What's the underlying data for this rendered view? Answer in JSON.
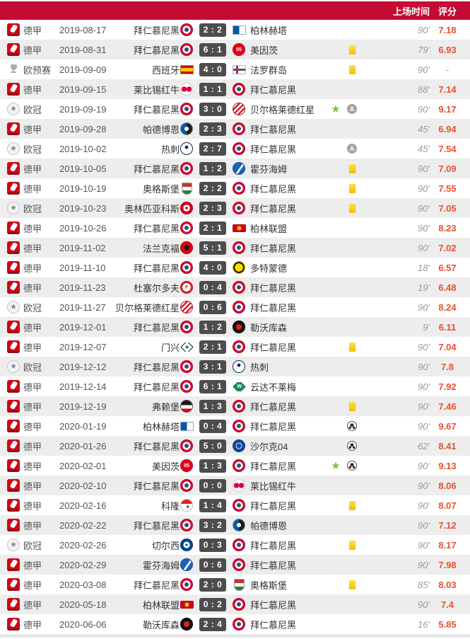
{
  "header": {
    "time_label": "上场时间",
    "rating_label": "评分",
    "bg": "#c40b33",
    "text_color": "#ffffff"
  },
  "colors": {
    "row_bg": "#ffffff",
    "row_alt_bg": "#ededed",
    "rating": "#e9502e",
    "rating_na": "#999999",
    "time": "#9b9b9b",
    "name": "#333333",
    "meta": "#555555",
    "score_bg": "#4d4d4f",
    "star": "#7ac143",
    "assist_badge_bg": "#a3a3a3",
    "footer_strip": "#e9e9e9",
    "bundesliga_red": "#d20515",
    "header_red": "#c40b33",
    "yellow_card": "#f3c000"
  },
  "glyphs": {
    "star": "★",
    "ucl_starball": "★",
    "assist_letter": "A"
  },
  "leagues": {
    "bundesliga": {
      "label": "德甲"
    },
    "ucl": {
      "label": "欧冠"
    },
    "euro_qualifier": {
      "label": "欧预赛"
    }
  },
  "team_logos": {
    "拜仁慕尼黑": {
      "shape": "circle",
      "bg": "radial-gradient(circle, #29508c 0 26%, #ffffff 26% 50%, #d50c2e 50% 100%)",
      "border": "#b00a26"
    },
    "柏林赫塔": {
      "shape": "flag",
      "bg": "linear-gradient(90deg, #0b57a4 0 50%, #ffffff 50% 100%)",
      "border": "#8aa5c2"
    },
    "美因茨": {
      "shape": "circle",
      "bg": "#e2001a",
      "border": "#c00016",
      "label": "05",
      "label_color": "#ffffff"
    },
    "西班牙": {
      "shape": "flag",
      "bg": "linear-gradient(180deg, #c60b1e 0 27%, #ffc400 27% 73%, #c60b1e 73% 100%)",
      "border": "#b39200"
    },
    "法罗群岛": {
      "shape": "flag",
      "bg": "linear-gradient(90deg, transparent 0 27%, #d8232a 27% 38%, transparent 38%), linear-gradient(180deg, transparent 0 41%, #d8232a 41% 59%, transparent 59%), linear-gradient(90deg, transparent 0 23%, #0065bd 23% 42%, transparent 42%), linear-gradient(180deg, transparent 0 35%, #0065bd 35% 65%, transparent 65%), #ffffff",
      "border": "#a9b8cf"
    },
    "莱比锡红牛": {
      "shape": "circle",
      "bg": "radial-gradient(circle at 28% 50%, #dd013f 0 26%, transparent 27%), radial-gradient(circle at 72% 50%, #dd013f 0 26%, transparent 27%), #ffffff",
      "border": "#cccccc"
    },
    "贝尔格莱德红星": {
      "shape": "circle",
      "bg": "repeating-linear-gradient(135deg, #d31f2b 0 2.5px, #ffffff 2.5px 5px)",
      "border": "#b31c26"
    },
    "帕德博恩": {
      "shape": "circle",
      "bg": "radial-gradient(circle, #ffffff 0 26%, transparent 27%), linear-gradient(90deg, #045ba5 0 50%, #1c1c1c 50%)",
      "border": "#888888"
    },
    "热刺": {
      "shape": "circle",
      "bg": "radial-gradient(circle at 50% 38%, #132257 0 18%, transparent 19%), #ffffff",
      "border": "#132257"
    },
    "霍芬海姆": {
      "shape": "circle",
      "bg": "linear-gradient(125deg, #1c63b7 0 52%, #ffffff 52% 64%, #1c63b7 64% 100%)",
      "border": "#114a8c"
    },
    "奥格斯堡": {
      "shape": "shield",
      "bg": "linear-gradient(180deg, #c3362b 0 34%, #ffffff 34% 66%, #2f7a3d 66% 100%)",
      "border": "#999999"
    },
    "奥林匹亚科斯": {
      "shape": "circle",
      "bg": "radial-gradient(circle, #d6001c 0 16%, #ffffff 16% 42%, #d6001c 42% 100%)",
      "border": "#a80016"
    },
    "柏林联盟": {
      "shape": "wide",
      "bg": "radial-gradient(circle, #f3c10f 0 30%, transparent 31%), #d4011d",
      "border": "#a80117"
    },
    "法兰克福": {
      "shape": "circle",
      "bg": "radial-gradient(circle, #1a1a1a 0 34%, #e1000f 34% 100%)",
      "border": "#b00000"
    },
    "多特蒙德": {
      "shape": "circle",
      "bg": "radial-gradient(circle, #ffd900 0 52%, #191919 52% 70%, #ffd900 70% 100%)",
      "border": "#d4b500"
    },
    "杜塞尔多夫": {
      "shape": "circle",
      "bg": "radial-gradient(circle, #ffffff 0 52%, #da251d 52% 100%)",
      "border": "#b51d17",
      "label": "F",
      "label_color": "#da251d"
    },
    "勒沃库森": {
      "shape": "circle",
      "bg": "radial-gradient(circle, #e32219 0 36%, #111111 36% 100%)",
      "border": "#000000"
    },
    "门兴": {
      "shape": "diamond",
      "bg": "radial-gradient(circle, #1d9053 0 28%, transparent 29%), #ffffff",
      "border": "#1a1a1a"
    },
    "云达不莱梅": {
      "shape": "diamond",
      "bg": "#169154",
      "border": "#0e6b3d",
      "label": "W",
      "label_color": "#ffffff"
    },
    "弗赖堡": {
      "shape": "circle",
      "bg": "linear-gradient(180deg, #1a1a1a 0 42%, #ffffff 42% 72%, #e2001a 72% 100%)",
      "border": "#555555"
    },
    "沙尔克04": {
      "shape": "circle",
      "bg": "radial-gradient(circle, #0d4ba0 0 30%, #ffffff 30% 38%, #0d4ba0 38% 100%)",
      "border": "#093a7d"
    },
    "科隆": {
      "shape": "circle",
      "bg": "radial-gradient(circle at 60% 62%, #222222 0 10%, transparent 11%), linear-gradient(180deg, #ed1c24 0 36%, #ffffff 36% 100%)",
      "border": "#bbbbbb"
    },
    "切尔西": {
      "shape": "circle",
      "bg": "radial-gradient(circle, #034694 0 14%, #ffffff 14% 40%, #034694 40% 100%)",
      "border": "#02346e"
    }
  },
  "rows": [
    {
      "league": "bundesliga",
      "date": "2019-08-17",
      "home": "拜仁慕尼黑",
      "away": "柏林赫塔",
      "score_home": 2,
      "score_away": 2,
      "icons": [],
      "minutes": "90'",
      "rating": "7.18"
    },
    {
      "league": "bundesliga",
      "date": "2019-08-31",
      "home": "拜仁慕尼黑",
      "away": "美因茨",
      "score_home": 6,
      "score_away": 1,
      "icons": [
        "yellow-card"
      ],
      "minutes": "79'",
      "rating": "6.93"
    },
    {
      "league": "euro_qualifier",
      "date": "2019-09-09",
      "home": "西班牙",
      "away": "法罗群岛",
      "score_home": 4,
      "score_away": 0,
      "icons": [
        "yellow-card"
      ],
      "minutes": "90'",
      "rating": "-"
    },
    {
      "league": "bundesliga",
      "date": "2019-09-15",
      "home": "莱比锡红牛",
      "away": "拜仁慕尼黑",
      "score_home": 1,
      "score_away": 1,
      "icons": [],
      "minutes": "88'",
      "rating": "7.14"
    },
    {
      "league": "ucl",
      "date": "2019-09-19",
      "home": "拜仁慕尼黑",
      "away": "贝尔格莱德红星",
      "score_home": 3,
      "score_away": 0,
      "icons": [
        "star",
        "assist"
      ],
      "minutes": "90'",
      "rating": "9.17"
    },
    {
      "league": "bundesliga",
      "date": "2019-09-28",
      "home": "帕德博恩",
      "away": "拜仁慕尼黑",
      "score_home": 2,
      "score_away": 3,
      "icons": [],
      "minutes": "45'",
      "rating": "6.94"
    },
    {
      "league": "ucl",
      "date": "2019-10-02",
      "home": "热刺",
      "away": "拜仁慕尼黑",
      "score_home": 2,
      "score_away": 7,
      "icons": [
        "assist"
      ],
      "minutes": "45'",
      "rating": "7.54"
    },
    {
      "league": "bundesliga",
      "date": "2019-10-05",
      "home": "拜仁慕尼黑",
      "away": "霍芬海姆",
      "score_home": 1,
      "score_away": 2,
      "icons": [
        "yellow-card"
      ],
      "minutes": "90'",
      "rating": "7.09"
    },
    {
      "league": "bundesliga",
      "date": "2019-10-19",
      "home": "奥格斯堡",
      "away": "拜仁慕尼黑",
      "score_home": 2,
      "score_away": 2,
      "icons": [
        "yellow-card"
      ],
      "minutes": "90'",
      "rating": "7.55"
    },
    {
      "league": "ucl",
      "date": "2019-10-23",
      "home": "奥林匹亚科斯",
      "away": "拜仁慕尼黑",
      "score_home": 2,
      "score_away": 3,
      "icons": [
        "yellow-card"
      ],
      "minutes": "90'",
      "rating": "7.05"
    },
    {
      "league": "bundesliga",
      "date": "2019-10-26",
      "home": "拜仁慕尼黑",
      "away": "柏林联盟",
      "score_home": 2,
      "score_away": 1,
      "icons": [],
      "minutes": "90'",
      "rating": "8.23"
    },
    {
      "league": "bundesliga",
      "date": "2019-11-02",
      "home": "法兰克福",
      "away": "拜仁慕尼黑",
      "score_home": 5,
      "score_away": 1,
      "icons": [],
      "minutes": "90'",
      "rating": "7.02"
    },
    {
      "league": "bundesliga",
      "date": "2019-11-10",
      "home": "拜仁慕尼黑",
      "away": "多特蒙德",
      "score_home": 4,
      "score_away": 0,
      "icons": [],
      "minutes": "18'",
      "rating": "6.57"
    },
    {
      "league": "bundesliga",
      "date": "2019-11-23",
      "home": "杜塞尔多夫",
      "away": "拜仁慕尼黑",
      "score_home": 0,
      "score_away": 4,
      "icons": [],
      "minutes": "19'",
      "rating": "6.48"
    },
    {
      "league": "ucl",
      "date": "2019-11-27",
      "home": "贝尔格莱德红星",
      "away": "拜仁慕尼黑",
      "score_home": 0,
      "score_away": 6,
      "icons": [],
      "minutes": "90'",
      "rating": "8.24"
    },
    {
      "league": "bundesliga",
      "date": "2019-12-01",
      "home": "拜仁慕尼黑",
      "away": "勒沃库森",
      "score_home": 1,
      "score_away": 2,
      "icons": [],
      "minutes": "9'",
      "rating": "6.11"
    },
    {
      "league": "bundesliga",
      "date": "2019-12-07",
      "home": "门兴",
      "away": "拜仁慕尼黑",
      "score_home": 2,
      "score_away": 1,
      "icons": [
        "yellow-card"
      ],
      "minutes": "90'",
      "rating": "7.04"
    },
    {
      "league": "ucl",
      "date": "2019-12-12",
      "home": "拜仁慕尼黑",
      "away": "热刺",
      "score_home": 3,
      "score_away": 1,
      "icons": [],
      "minutes": "90'",
      "rating": "7.8"
    },
    {
      "league": "bundesliga",
      "date": "2019-12-14",
      "home": "拜仁慕尼黑",
      "away": "云达不莱梅",
      "score_home": 6,
      "score_away": 1,
      "icons": [],
      "minutes": "90'",
      "rating": "7.92"
    },
    {
      "league": "bundesliga",
      "date": "2019-12-19",
      "home": "弗赖堡",
      "away": "拜仁慕尼黑",
      "score_home": 1,
      "score_away": 3,
      "icons": [
        "yellow-card"
      ],
      "minutes": "90'",
      "rating": "7.46"
    },
    {
      "league": "bundesliga",
      "date": "2020-01-19",
      "home": "柏林赫塔",
      "away": "拜仁慕尼黑",
      "score_home": 0,
      "score_away": 4,
      "icons": [
        "goal"
      ],
      "minutes": "90'",
      "rating": "9.67"
    },
    {
      "league": "bundesliga",
      "date": "2020-01-26",
      "home": "拜仁慕尼黑",
      "away": "沙尔克04",
      "score_home": 5,
      "score_away": 0,
      "icons": [
        "goal"
      ],
      "minutes": "62'",
      "rating": "8.41"
    },
    {
      "league": "bundesliga",
      "date": "2020-02-01",
      "home": "美因茨",
      "away": "拜仁慕尼黑",
      "score_home": 1,
      "score_away": 3,
      "icons": [
        "star",
        "goal"
      ],
      "minutes": "90'",
      "rating": "9.13"
    },
    {
      "league": "bundesliga",
      "date": "2020-02-10",
      "home": "拜仁慕尼黑",
      "away": "莱比锡红牛",
      "score_home": 0,
      "score_away": 0,
      "icons": [],
      "minutes": "90'",
      "rating": "8.06"
    },
    {
      "league": "bundesliga",
      "date": "2020-02-16",
      "home": "科隆",
      "away": "拜仁慕尼黑",
      "score_home": 1,
      "score_away": 4,
      "icons": [
        "yellow-card"
      ],
      "minutes": "90'",
      "rating": "8.07"
    },
    {
      "league": "bundesliga",
      "date": "2020-02-22",
      "home": "拜仁慕尼黑",
      "away": "帕德博恩",
      "score_home": 3,
      "score_away": 2,
      "icons": [],
      "minutes": "90'",
      "rating": "7.12"
    },
    {
      "league": "ucl",
      "date": "2020-02-26",
      "home": "切尔西",
      "away": "拜仁慕尼黑",
      "score_home": 0,
      "score_away": 3,
      "icons": [
        "yellow-card"
      ],
      "minutes": "90'",
      "rating": "8.17"
    },
    {
      "league": "bundesliga",
      "date": "2020-02-29",
      "home": "霍芬海姆",
      "away": "拜仁慕尼黑",
      "score_home": 0,
      "score_away": 6,
      "icons": [],
      "minutes": "90'",
      "rating": "7.98"
    },
    {
      "league": "bundesliga",
      "date": "2020-03-08",
      "home": "拜仁慕尼黑",
      "away": "奥格斯堡",
      "score_home": 2,
      "score_away": 0,
      "icons": [
        "yellow-card"
      ],
      "minutes": "85'",
      "rating": "8.03"
    },
    {
      "league": "bundesliga",
      "date": "2020-05-18",
      "home": "柏林联盟",
      "away": "拜仁慕尼黑",
      "score_home": 0,
      "score_away": 2,
      "icons": [],
      "minutes": "90'",
      "rating": "7.4"
    },
    {
      "league": "bundesliga",
      "date": "2020-06-06",
      "home": "勒沃库森",
      "away": "拜仁慕尼黑",
      "score_home": 2,
      "score_away": 4,
      "icons": [],
      "minutes": "16'",
      "rating": "5.85"
    }
  ]
}
